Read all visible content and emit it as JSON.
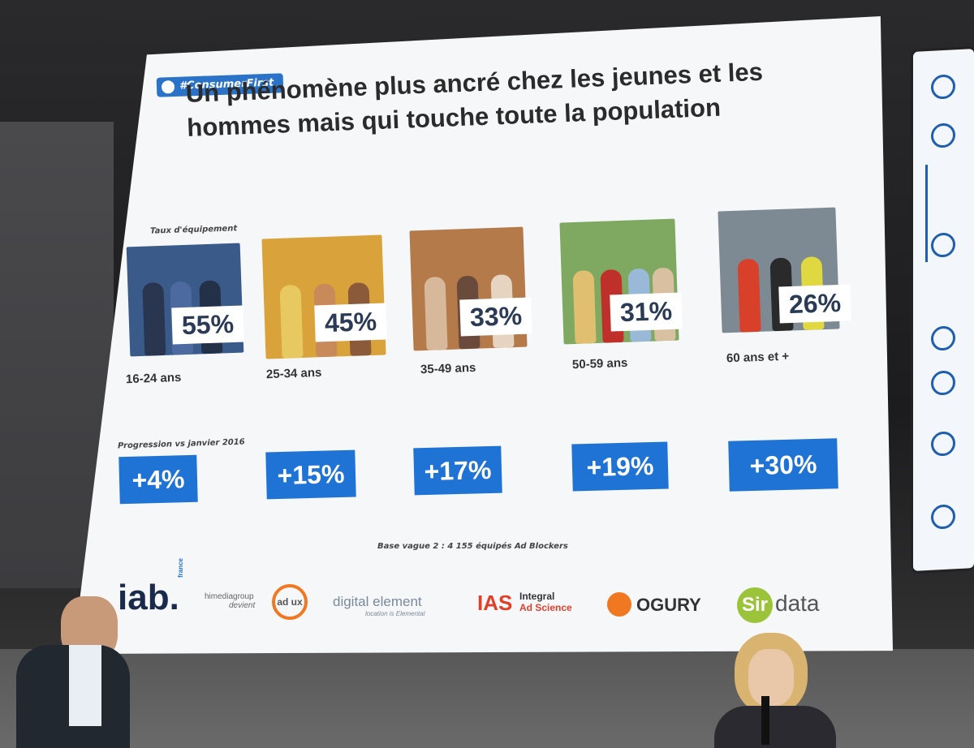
{
  "slide": {
    "hashtag": "#ConsumerFirst",
    "title_line1": "Un phénomène plus ancré chez les jeunes et les",
    "title_line2": "hommes mais qui touche toute la population",
    "rate_caption": "Taux d'équipement",
    "progress_caption": "Progression vs janvier 2016",
    "groups": [
      {
        "age": "16-24 ans",
        "rate": "55%",
        "progress": "+4%",
        "photo_color": "#3a5a8a"
      },
      {
        "age": "25-34 ans",
        "rate": "45%",
        "progress": "+15%",
        "photo_color": "#d9a23a"
      },
      {
        "age": "35-49 ans",
        "rate": "33%",
        "progress": "+17%",
        "photo_color": "#b47a4a"
      },
      {
        "age": "50-59 ans",
        "rate": "31%",
        "progress": "+19%",
        "photo_color": "#7fa860"
      },
      {
        "age": "60 ans et +",
        "rate": "26%",
        "progress": "+30%",
        "photo_color": "#7d8a94"
      }
    ],
    "base_note": "Base vague 2 : 4 155 équipés Ad Blockers",
    "logos": {
      "iab": "iab.",
      "iab_sub": "france",
      "hi_media": "himediagroup",
      "hi_media_sub": "devient",
      "adux": "ad ux",
      "digital_element": "digital element",
      "digital_element_sub": "location is Elemental",
      "ias": "IAS",
      "ias_name1": "Integral",
      "ias_name2": "Ad Science",
      "ogury": "OGURY",
      "sirdata_a": "Sir",
      "sirdata_b": "data"
    },
    "accent_color": "#1f73d4"
  }
}
